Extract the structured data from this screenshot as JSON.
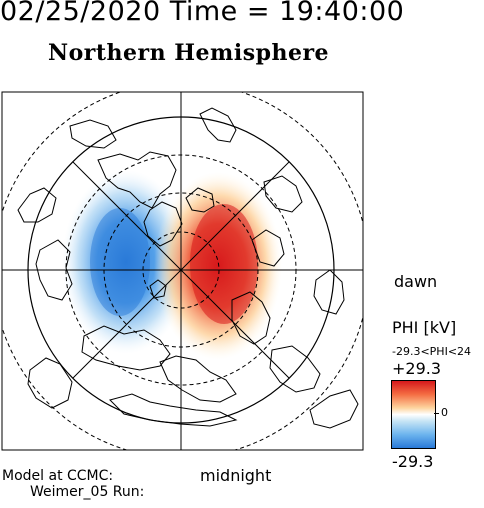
{
  "header": {
    "timestamp": "02/25/2020 Time = 19:40:00",
    "hemisphere": "Northern Hemisphere"
  },
  "map": {
    "projection": "polar-north",
    "labels": {
      "dawn": "dawn",
      "midnight": "midnight"
    },
    "potential_pattern": {
      "dawn_cell_color": "#2a7ad8",
      "dusk_cell_color": "#d7191c"
    }
  },
  "colorbar": {
    "title": "PHI [kV]",
    "range_text": "-29.3<PHI<24",
    "max_label": "+29.3",
    "zero_label": "0",
    "min_label": "-29.3",
    "colors": [
      "#d7191c",
      "#f46d43",
      "#fdd49e",
      "#ffffff",
      "#c6e4f5",
      "#6cb4ee",
      "#2a7ad8"
    ]
  },
  "footer": {
    "model_line": "Model at CCMC:",
    "run_line": "Weimer_05 Run:"
  }
}
